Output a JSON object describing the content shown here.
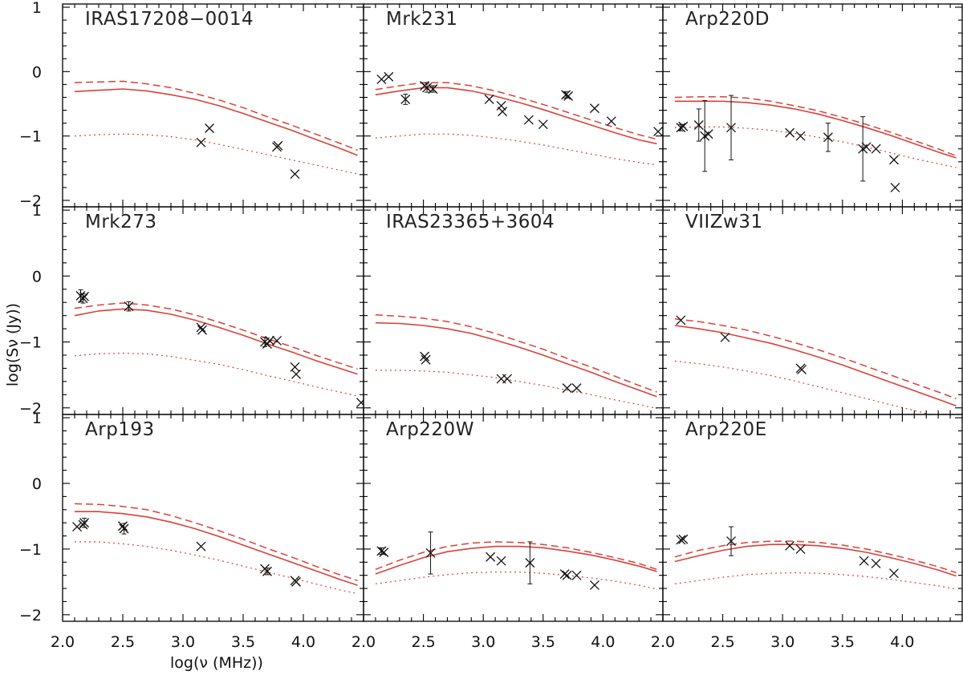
{
  "colors": {
    "model": "#d9413a",
    "data": "#111111",
    "axes": "#000000"
  },
  "chart_data": {
    "type": "scatter",
    "layout": {
      "rows": 3,
      "cols": 3
    },
    "xlabel": "log(ν (MHz))",
    "ylabel": "log(Sν (Jy))",
    "xlim": [
      2.0,
      4.5
    ],
    "ylim": [
      -2.1,
      1.05
    ],
    "x_ticks": [
      2.0,
      2.5,
      3.0,
      3.5,
      4.0
    ],
    "x_tick_labels": [
      "2.0",
      "2.5",
      "3.0",
      "3.5",
      "4.0"
    ],
    "y_ticks": [
      -2,
      -1,
      0,
      1
    ],
    "y_tick_labels": [
      "−2",
      "−1",
      "0",
      "1"
    ],
    "model_x": [
      2.1,
      2.3,
      2.5,
      2.7,
      2.9,
      3.1,
      3.3,
      3.5,
      3.7,
      3.9,
      4.1,
      4.3,
      4.45
    ],
    "panels": [
      {
        "title": "IRAS17208−0014",
        "solid": [
          -0.31,
          -0.29,
          -0.27,
          -0.3,
          -0.36,
          -0.43,
          -0.53,
          -0.65,
          -0.78,
          -0.91,
          -1.05,
          -1.19,
          -1.3
        ],
        "dashed": [
          -0.17,
          -0.16,
          -0.15,
          -0.19,
          -0.25,
          -0.34,
          -0.44,
          -0.56,
          -0.7,
          -0.83,
          -0.97,
          -1.11,
          -1.22
        ],
        "dotted": [
          -1.0,
          -0.98,
          -0.97,
          -0.98,
          -1.01,
          -1.06,
          -1.13,
          -1.21,
          -1.29,
          -1.37,
          -1.45,
          -1.53,
          -1.59
        ],
        "points": [
          [
            3.15,
            -1.1,
            0
          ],
          [
            3.22,
            -0.88,
            0
          ],
          [
            3.78,
            -1.17,
            0
          ],
          [
            3.79,
            -1.15,
            0
          ],
          [
            3.93,
            -1.59,
            0
          ]
        ]
      },
      {
        "title": "Mrk231",
        "solid": [
          -0.36,
          -0.3,
          -0.25,
          -0.25,
          -0.3,
          -0.38,
          -0.48,
          -0.59,
          -0.71,
          -0.83,
          -0.95,
          -1.06,
          -1.12
        ],
        "dashed": [
          -0.28,
          -0.22,
          -0.17,
          -0.17,
          -0.22,
          -0.3,
          -0.4,
          -0.51,
          -0.63,
          -0.75,
          -0.87,
          -0.98,
          -1.05
        ],
        "dotted": [
          -1.03,
          -1.0,
          -0.97,
          -0.97,
          -0.99,
          -1.03,
          -1.08,
          -1.14,
          -1.21,
          -1.28,
          -1.35,
          -1.41,
          -1.45
        ],
        "points": [
          [
            2.15,
            -0.12,
            0
          ],
          [
            2.21,
            -0.08,
            0
          ],
          [
            2.35,
            -0.43,
            0.08
          ],
          [
            2.51,
            -0.22,
            0
          ],
          [
            2.53,
            -0.25,
            0.07
          ],
          [
            2.58,
            -0.27,
            0.05
          ],
          [
            3.05,
            -0.43,
            0
          ],
          [
            3.15,
            -0.53,
            0
          ],
          [
            3.16,
            -0.62,
            0
          ],
          [
            3.38,
            -0.75,
            0
          ],
          [
            3.5,
            -0.82,
            0
          ],
          [
            3.69,
            -0.36,
            0.05
          ],
          [
            3.71,
            -0.38,
            0
          ],
          [
            3.93,
            -0.57,
            0
          ],
          [
            4.07,
            -0.77,
            0
          ],
          [
            4.46,
            -0.93,
            0
          ]
        ]
      },
      {
        "title": "Arp220D",
        "solid": [
          -0.46,
          -0.46,
          -0.46,
          -0.48,
          -0.52,
          -0.58,
          -0.66,
          -0.76,
          -0.87,
          -0.99,
          -1.12,
          -1.25,
          -1.34
        ],
        "dashed": [
          -0.4,
          -0.39,
          -0.39,
          -0.41,
          -0.46,
          -0.53,
          -0.61,
          -0.71,
          -0.82,
          -0.94,
          -1.07,
          -1.2,
          -1.31
        ],
        "dotted": [
          -0.87,
          -0.86,
          -0.86,
          -0.88,
          -0.91,
          -0.96,
          -1.02,
          -1.09,
          -1.17,
          -1.26,
          -1.35,
          -1.43,
          -1.49
        ],
        "points": [
          [
            2.15,
            -0.87,
            0.05
          ],
          [
            2.17,
            -0.85,
            0
          ],
          [
            2.3,
            -0.83,
            0.25
          ],
          [
            2.35,
            -1.0,
            0.55
          ],
          [
            2.38,
            -0.97,
            0
          ],
          [
            2.57,
            -0.87,
            0.5
          ],
          [
            3.06,
            -0.95,
            0
          ],
          [
            3.15,
            -1.0,
            0
          ],
          [
            3.38,
            -1.02,
            0.22
          ],
          [
            3.67,
            -1.2,
            0.5
          ],
          [
            3.7,
            -1.17,
            0
          ],
          [
            3.78,
            -1.2,
            0
          ],
          [
            3.93,
            -1.37,
            0
          ],
          [
            3.94,
            -1.8,
            0
          ]
        ]
      },
      {
        "title": "Mrk273",
        "solid": [
          -0.6,
          -0.53,
          -0.5,
          -0.52,
          -0.58,
          -0.67,
          -0.78,
          -0.9,
          -1.03,
          -1.15,
          -1.28,
          -1.4,
          -1.49
        ],
        "dashed": [
          -0.49,
          -0.44,
          -0.41,
          -0.44,
          -0.5,
          -0.59,
          -0.7,
          -0.82,
          -0.95,
          -1.07,
          -1.2,
          -1.32,
          -1.41
        ],
        "dotted": [
          -1.21,
          -1.18,
          -1.17,
          -1.18,
          -1.22,
          -1.28,
          -1.34,
          -1.42,
          -1.51,
          -1.59,
          -1.68,
          -1.76,
          -1.82
        ],
        "points": [
          [
            2.15,
            -0.3,
            0.09
          ],
          [
            2.17,
            -0.34,
            0.07
          ],
          [
            2.18,
            -0.31,
            0
          ],
          [
            2.55,
            -0.46,
            0.07
          ],
          [
            3.15,
            -0.78,
            0
          ],
          [
            3.16,
            -0.82,
            0
          ],
          [
            3.68,
            -1.0,
            0.07
          ],
          [
            3.7,
            -1.03,
            0
          ],
          [
            3.72,
            -0.98,
            0
          ],
          [
            3.78,
            -0.98,
            0
          ],
          [
            3.93,
            -1.38,
            0
          ],
          [
            3.94,
            -1.49,
            0
          ],
          [
            4.48,
            -1.92,
            0
          ]
        ]
      },
      {
        "title": "IRAS23365+3604",
        "solid": [
          -0.71,
          -0.72,
          -0.75,
          -0.8,
          -0.87,
          -0.97,
          -1.08,
          -1.2,
          -1.33,
          -1.46,
          -1.6,
          -1.73,
          -1.83
        ],
        "dashed": [
          -0.59,
          -0.61,
          -0.64,
          -0.69,
          -0.77,
          -0.87,
          -0.99,
          -1.11,
          -1.25,
          -1.38,
          -1.52,
          -1.66,
          -1.76
        ],
        "dotted": [
          -1.43,
          -1.43,
          -1.44,
          -1.46,
          -1.5,
          -1.54,
          -1.6,
          -1.66,
          -1.73,
          -1.8,
          -1.88,
          -1.95,
          -2.01
        ],
        "points": [
          [
            2.51,
            -1.22,
            0
          ],
          [
            2.52,
            -1.27,
            0
          ],
          [
            3.15,
            -1.56,
            0
          ],
          [
            3.2,
            -1.56,
            0
          ],
          [
            3.7,
            -1.7,
            0
          ],
          [
            3.78,
            -1.7,
            0
          ]
        ]
      },
      {
        "title": "VIIZw31",
        "solid": [
          -0.75,
          -0.8,
          -0.86,
          -0.94,
          -1.02,
          -1.12,
          -1.23,
          -1.35,
          -1.48,
          -1.61,
          -1.74,
          -1.87,
          -1.97
        ],
        "dashed": [
          -0.65,
          -0.69,
          -0.75,
          -0.82,
          -0.91,
          -1.01,
          -1.12,
          -1.24,
          -1.37,
          -1.5,
          -1.63,
          -1.76,
          -1.86
        ],
        "dotted": [
          -1.29,
          -1.33,
          -1.38,
          -1.44,
          -1.51,
          -1.59,
          -1.68,
          -1.77,
          -1.86,
          -1.95,
          -2.04,
          -2.13,
          -2.19
        ],
        "points": [
          [
            2.15,
            -0.67,
            0
          ],
          [
            2.52,
            -0.93,
            0
          ],
          [
            3.15,
            -1.4,
            0
          ],
          [
            3.16,
            -1.42,
            0
          ]
        ]
      },
      {
        "title": "Arp193",
        "solid": [
          -0.43,
          -0.43,
          -0.46,
          -0.51,
          -0.59,
          -0.69,
          -0.81,
          -0.94,
          -1.07,
          -1.2,
          -1.33,
          -1.46,
          -1.55
        ],
        "dashed": [
          -0.31,
          -0.32,
          -0.35,
          -0.4,
          -0.49,
          -0.6,
          -0.72,
          -0.85,
          -0.99,
          -1.12,
          -1.26,
          -1.39,
          -1.48
        ],
        "dotted": [
          -0.89,
          -0.89,
          -0.92,
          -0.96,
          -1.02,
          -1.09,
          -1.17,
          -1.26,
          -1.35,
          -1.44,
          -1.53,
          -1.62,
          -1.68
        ],
        "points": [
          [
            2.12,
            -0.66,
            0
          ],
          [
            2.17,
            -0.63,
            0
          ],
          [
            2.18,
            -0.6,
            0.07
          ],
          [
            2.5,
            -0.65,
            0
          ],
          [
            2.51,
            -0.69,
            0.08
          ],
          [
            3.15,
            -0.96,
            0
          ],
          [
            3.68,
            -1.3,
            0
          ],
          [
            3.7,
            -1.34,
            0.05
          ],
          [
            3.93,
            -1.48,
            0
          ],
          [
            3.94,
            -1.5,
            0
          ]
        ]
      },
      {
        "title": "Arp220W",
        "solid": [
          -1.38,
          -1.25,
          -1.13,
          -1.04,
          -0.99,
          -0.96,
          -0.96,
          -0.98,
          -1.03,
          -1.09,
          -1.17,
          -1.26,
          -1.34
        ],
        "dashed": [
          -1.31,
          -1.17,
          -1.05,
          -0.96,
          -0.91,
          -0.89,
          -0.9,
          -0.93,
          -0.98,
          -1.05,
          -1.13,
          -1.22,
          -1.31
        ],
        "dotted": [
          -1.53,
          -1.48,
          -1.43,
          -1.39,
          -1.36,
          -1.35,
          -1.35,
          -1.37,
          -1.4,
          -1.44,
          -1.49,
          -1.55,
          -1.61
        ],
        "points": [
          [
            2.15,
            -1.03,
            0.05
          ],
          [
            2.17,
            -1.05,
            0
          ],
          [
            2.56,
            -1.06,
            0.32
          ],
          [
            3.06,
            -1.12,
            0
          ],
          [
            3.15,
            -1.18,
            0
          ],
          [
            3.39,
            -1.21,
            0.32
          ],
          [
            3.68,
            -1.38,
            0
          ],
          [
            3.7,
            -1.4,
            0
          ],
          [
            3.78,
            -1.4,
            0
          ],
          [
            3.93,
            -1.55,
            0
          ]
        ]
      },
      {
        "title": "Arp220E",
        "solid": [
          -1.19,
          -1.1,
          -1.02,
          -0.96,
          -0.93,
          -0.93,
          -0.95,
          -0.99,
          -1.05,
          -1.13,
          -1.22,
          -1.32,
          -1.41
        ],
        "dashed": [
          -1.12,
          -1.02,
          -0.95,
          -0.9,
          -0.88,
          -0.88,
          -0.9,
          -0.94,
          -1.0,
          -1.08,
          -1.17,
          -1.27,
          -1.36
        ],
        "dotted": [
          -1.53,
          -1.48,
          -1.43,
          -1.39,
          -1.37,
          -1.36,
          -1.37,
          -1.39,
          -1.42,
          -1.46,
          -1.51,
          -1.56,
          -1.61
        ],
        "points": [
          [
            2.15,
            -0.86,
            0
          ],
          [
            2.17,
            -0.85,
            0
          ],
          [
            2.57,
            -0.88,
            0.22
          ],
          [
            3.06,
            -0.95,
            0
          ],
          [
            3.15,
            -1.0,
            0
          ],
          [
            3.68,
            -1.18,
            0
          ],
          [
            3.78,
            -1.22,
            0
          ],
          [
            3.93,
            -1.37,
            0
          ]
        ]
      }
    ]
  }
}
